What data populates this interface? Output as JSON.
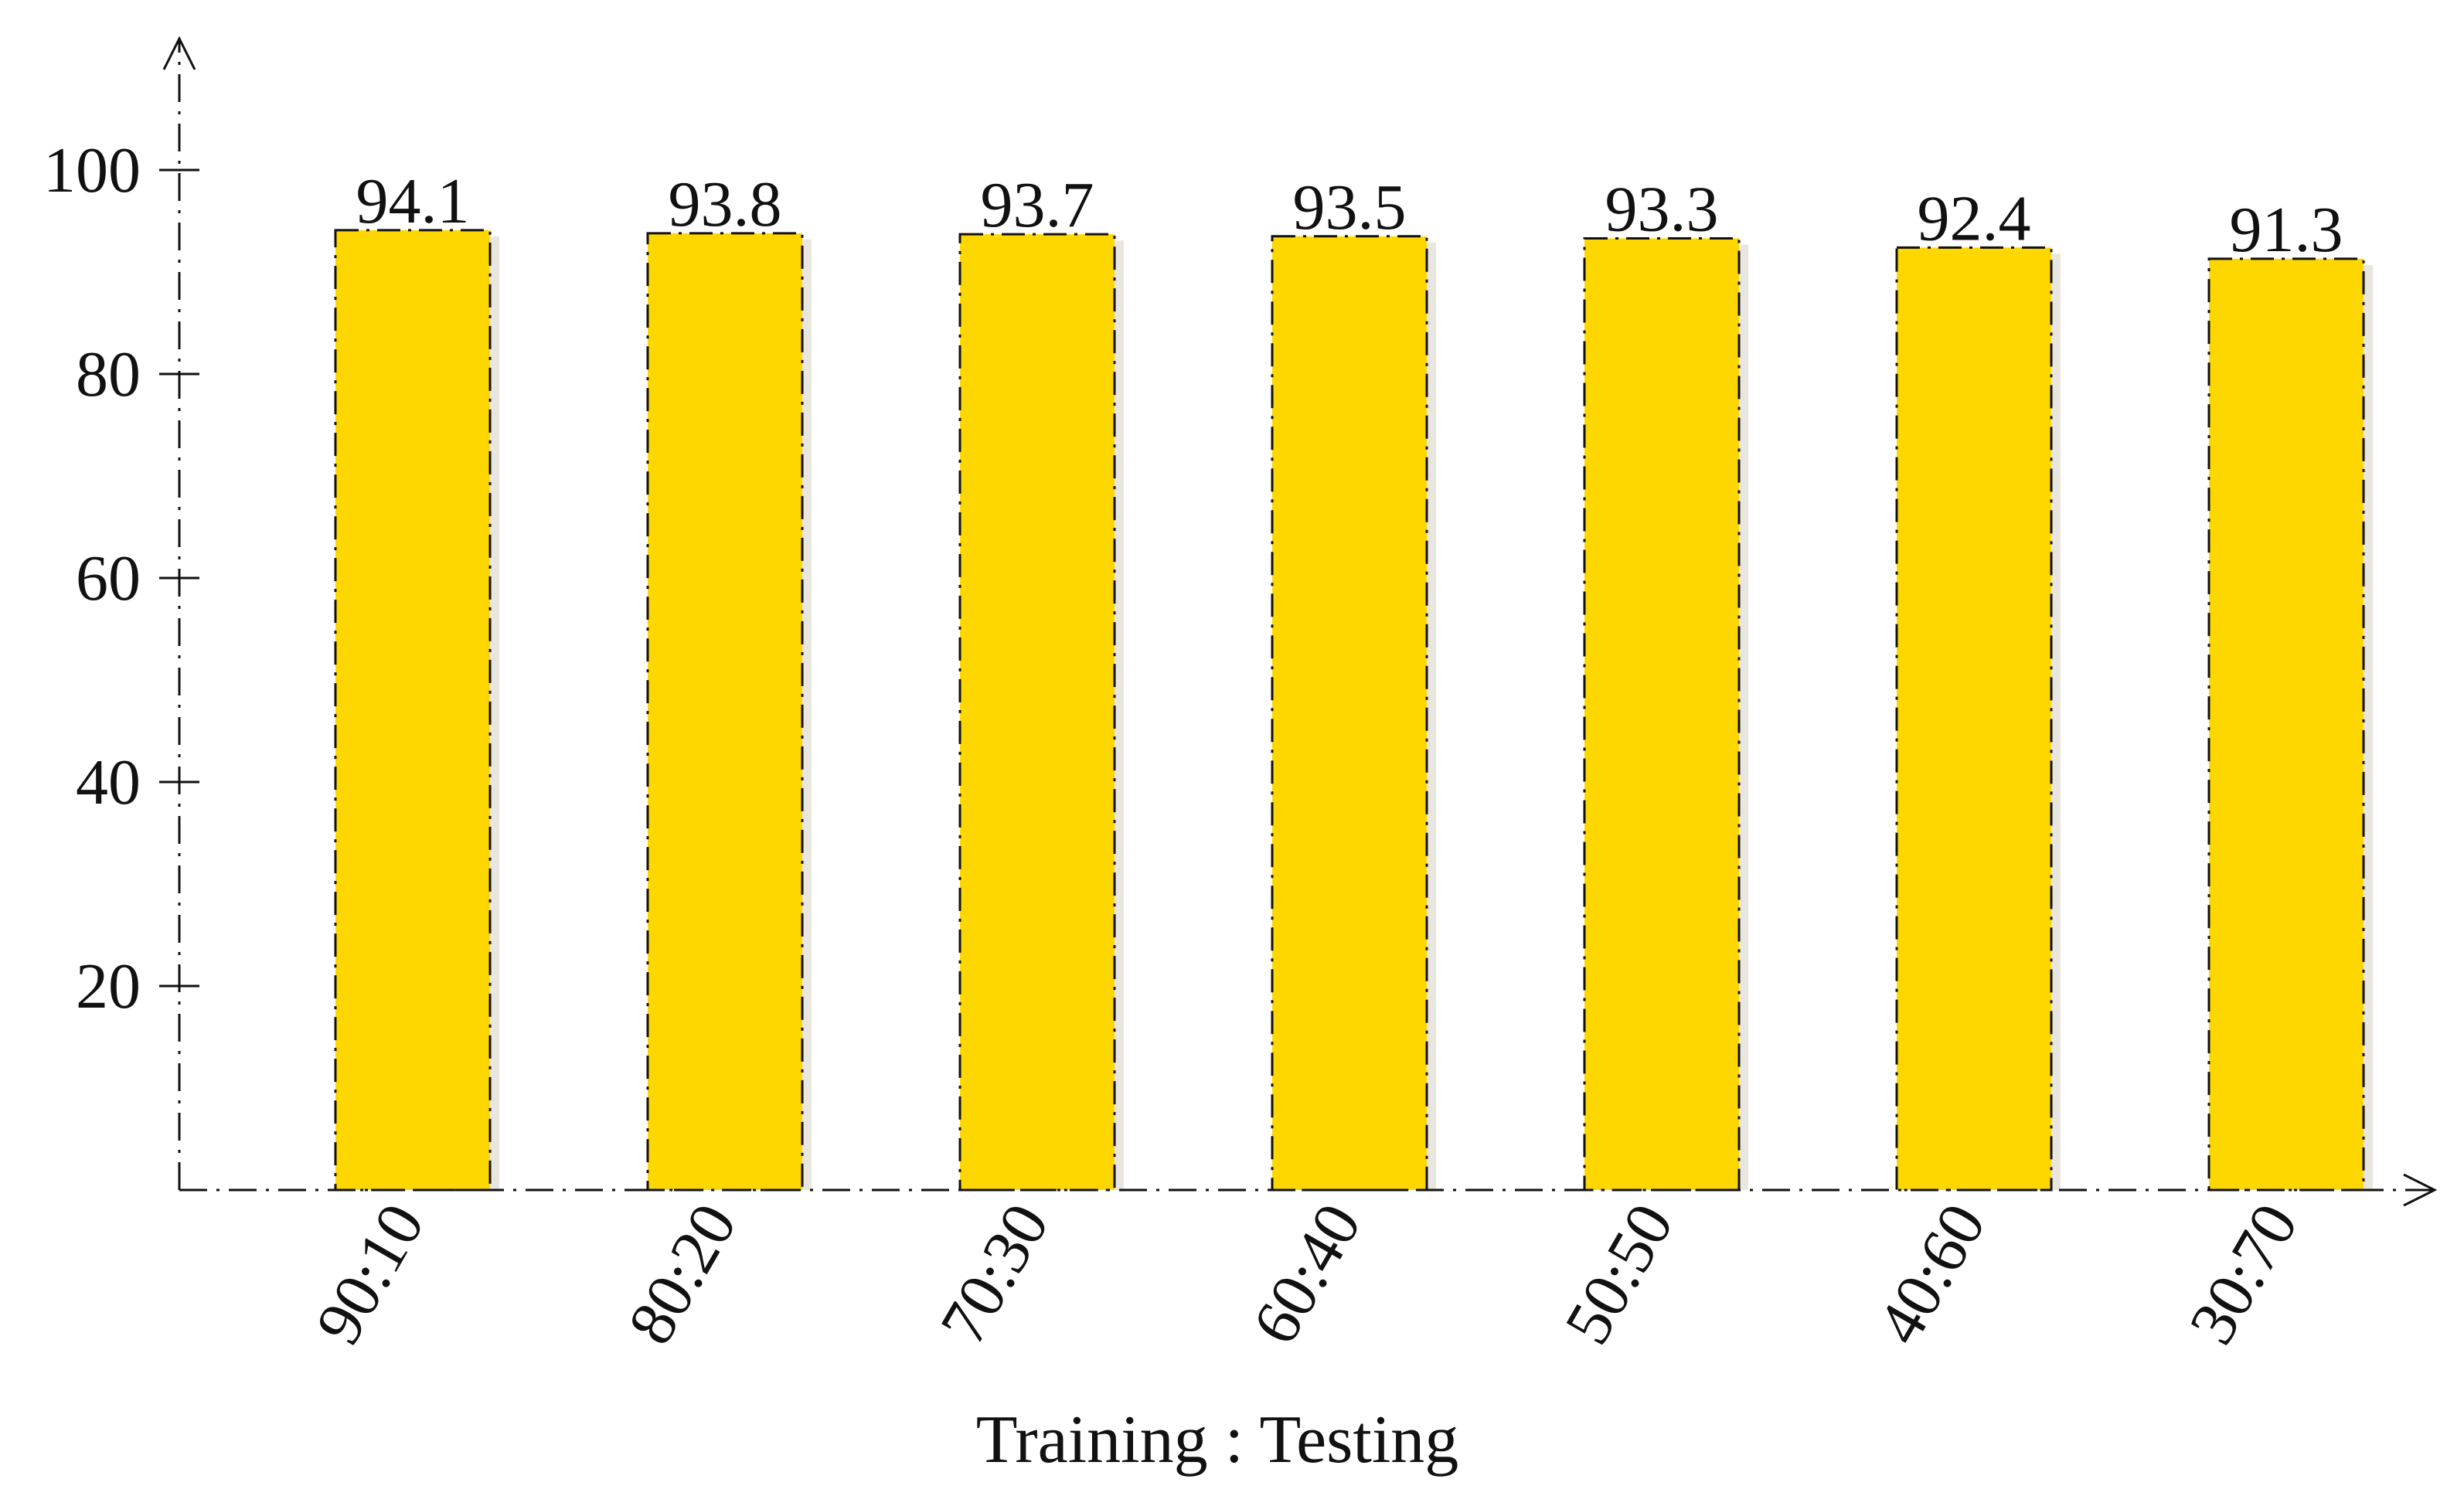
{
  "chart_data": {
    "type": "bar",
    "categories": [
      "90:10",
      "80:20",
      "70:30",
      "60:40",
      "50:50",
      "40:60",
      "30:70"
    ],
    "values": [
      94.1,
      93.8,
      93.7,
      93.5,
      93.3,
      92.4,
      91.3
    ],
    "value_labels": [
      "94.1",
      "93.8",
      "93.7",
      "93.5",
      "93.3",
      "92.4",
      "91.3"
    ],
    "yticks": [
      20,
      40,
      60,
      80,
      100
    ],
    "ylim": [
      0,
      110
    ],
    "xlabel": "Training : Testing",
    "ylabel": "",
    "title": "",
    "grid": false,
    "bar_color": "#FFD700"
  }
}
